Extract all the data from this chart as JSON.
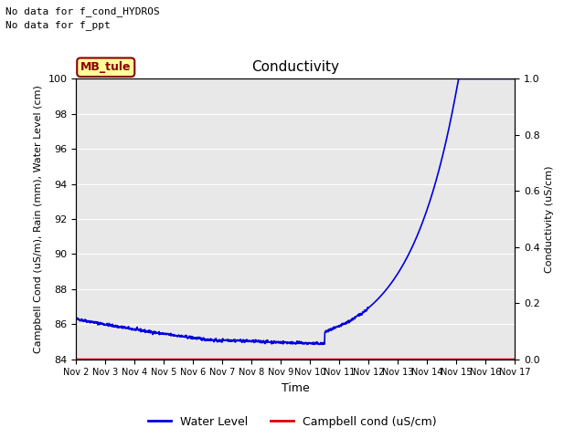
{
  "title": "Conductivity",
  "xlabel": "Time",
  "ylabel_left": "Campbell Cond (uS/m), Rain (mm), Water Level (cm)",
  "ylabel_right": "Conductivity (uS/cm)",
  "annotation_line1": "No data for f_cond_HYDROS",
  "annotation_line2": "No data for f_ppt",
  "legend_box_label": "MB_tule",
  "ylim_left": [
    84,
    100
  ],
  "ylim_right": [
    0.0,
    1.0
  ],
  "yticks_left": [
    84,
    86,
    88,
    90,
    92,
    94,
    96,
    98,
    100
  ],
  "yticks_right": [
    0.0,
    0.2,
    0.4,
    0.6,
    0.8,
    1.0
  ],
  "xtick_labels": [
    "Nov 2",
    "Nov 3",
    "Nov 4",
    "Nov 5",
    "Nov 6",
    "Nov 7",
    "Nov 8",
    "Nov 9",
    "Nov 10",
    "Nov 11",
    "Nov 12",
    "Nov 13",
    "Nov 14",
    "Nov 15",
    "Nov 16",
    "Nov 17"
  ],
  "water_level_color": "#0000dd",
  "campbell_cond_color": "#dd0000",
  "background_color": "#e8e8e8",
  "legend_entries": [
    "Water Level",
    "Campbell cond (uS/cm)"
  ],
  "legend_colors": [
    "#0000dd",
    "#dd0000"
  ],
  "mb_tule_facecolor": "#ffff99",
  "mb_tule_edgecolor": "#8b0000",
  "mb_tule_textcolor": "#8b0000"
}
